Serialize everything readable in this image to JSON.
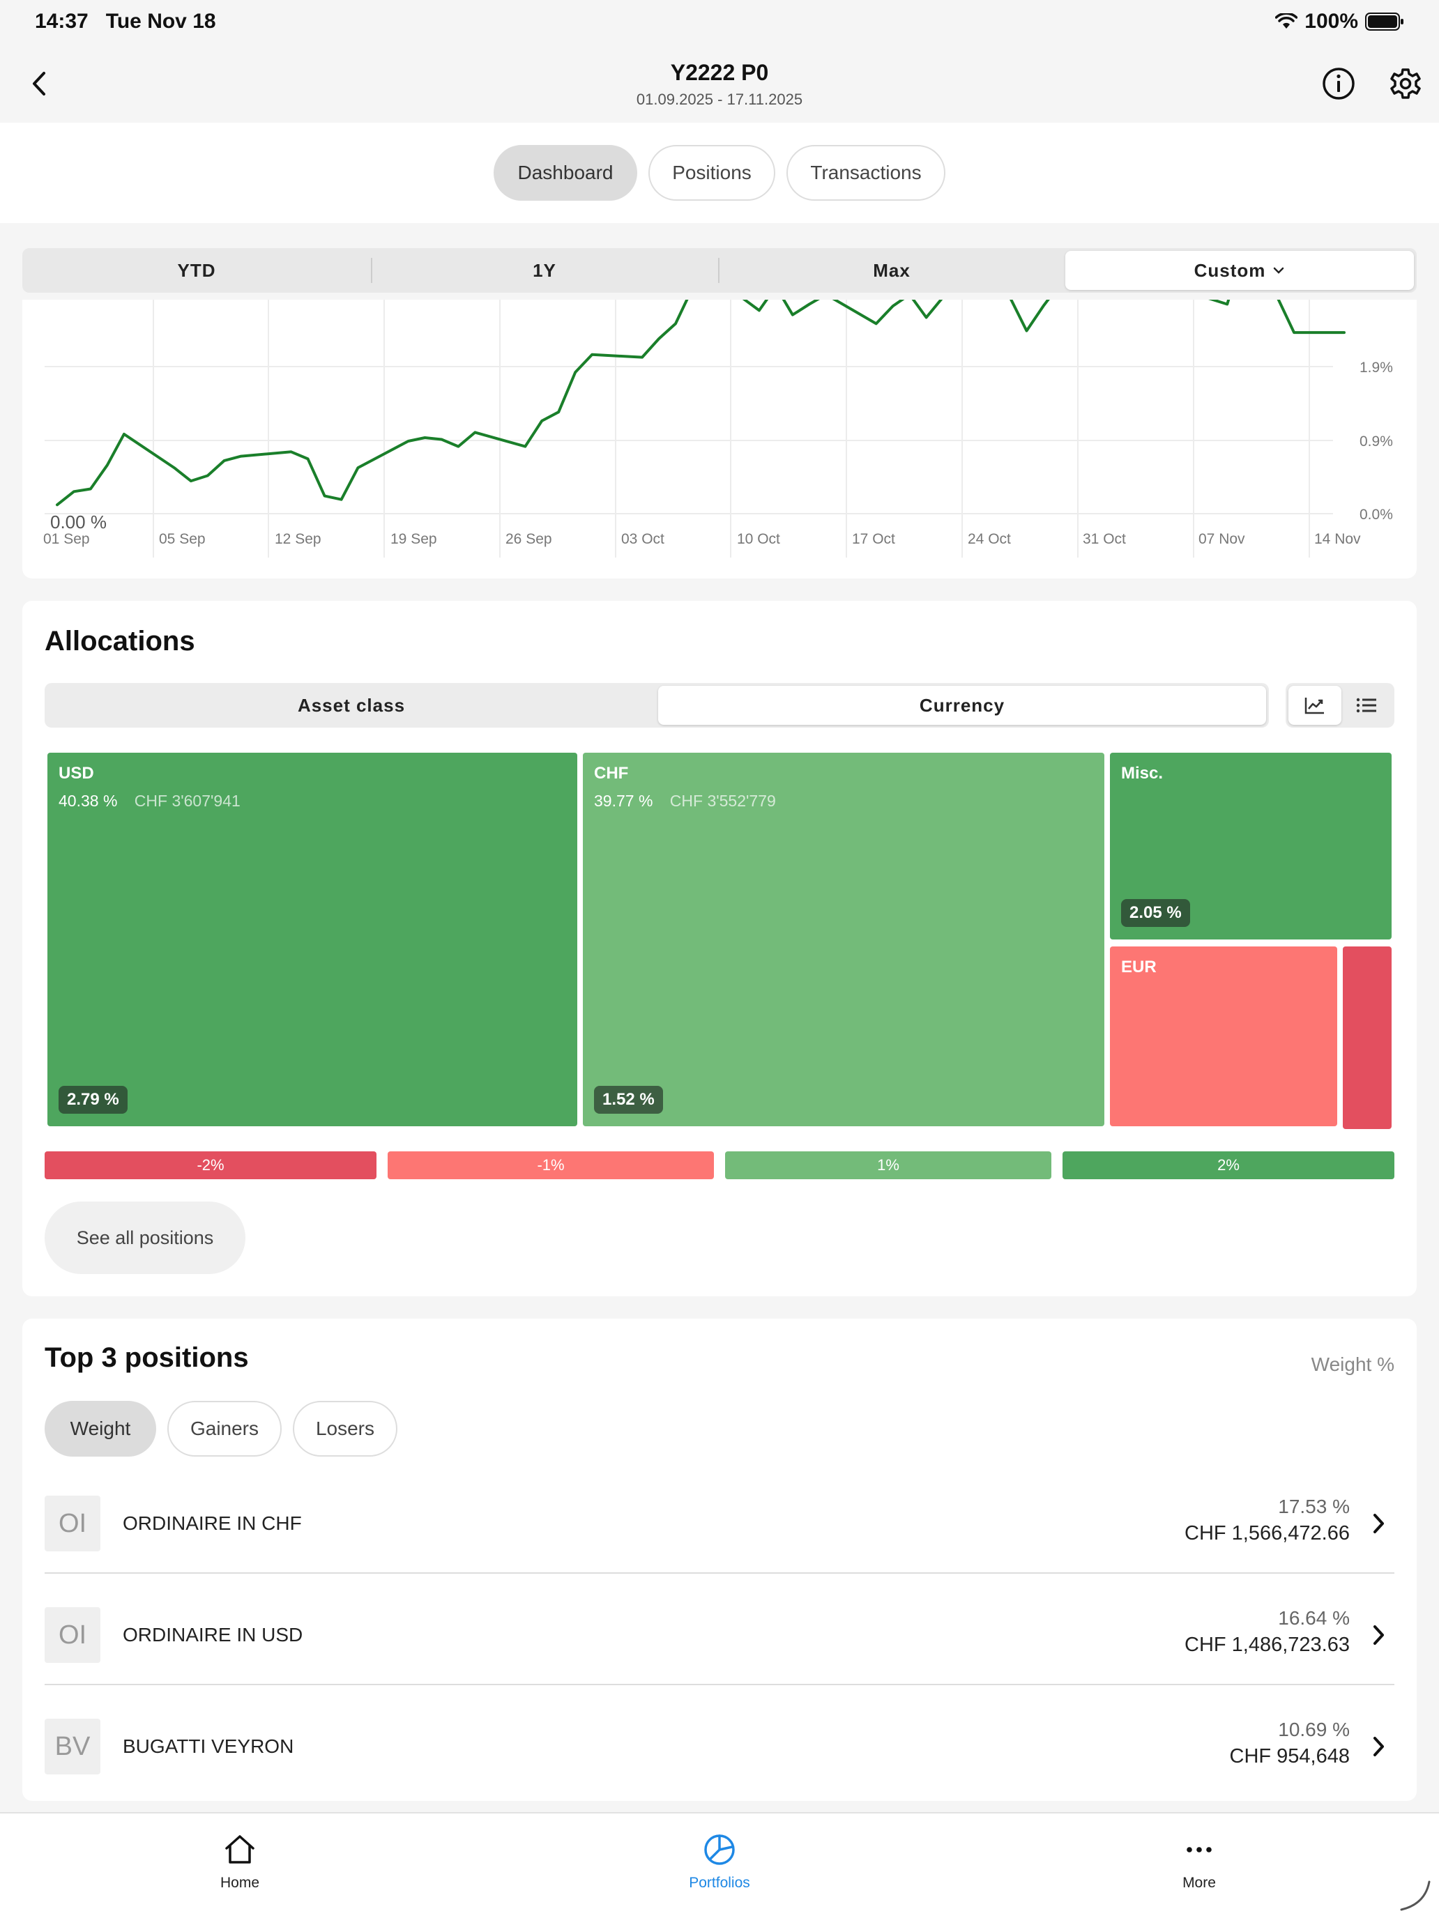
{
  "status": {
    "time": "14:37",
    "date": "Tue Nov 18",
    "battery": "100%"
  },
  "header": {
    "title": "Y2222 P0",
    "subtitle": "01.09.2025 - 17.11.2025"
  },
  "top_tabs": [
    {
      "label": "Dashboard",
      "active": true
    },
    {
      "label": "Positions",
      "active": false
    },
    {
      "label": "Transactions",
      "active": false
    }
  ],
  "period": {
    "options": [
      "YTD",
      "1Y",
      "Max",
      "Custom"
    ],
    "selected": "Custom"
  },
  "chart_data": {
    "type": "line",
    "x_tick_labels": [
      "01 Sep",
      "05 Sep",
      "12 Sep",
      "19 Sep",
      "26 Sep",
      "03 Oct",
      "10 Oct",
      "17 Oct",
      "24 Oct",
      "31 Oct",
      "07 Nov",
      "14 Nov"
    ],
    "y_tick_labels": [
      "1.9%",
      "0.9%",
      "0.0%"
    ],
    "start_label": "0.00 %",
    "ylim": [
      -0.1,
      2.7
    ],
    "line_color": "#1a7f2a",
    "x": [
      "2025-09-01",
      "2025-09-02",
      "2025-09-03",
      "2025-09-04",
      "2025-09-05",
      "2025-09-08",
      "2025-09-09",
      "2025-09-10",
      "2025-09-11",
      "2025-09-12",
      "2025-09-15",
      "2025-09-16",
      "2025-09-17",
      "2025-09-18",
      "2025-09-19",
      "2025-09-22",
      "2025-09-23",
      "2025-09-24",
      "2025-09-25",
      "2025-09-26",
      "2025-09-29",
      "2025-09-30",
      "2025-10-01",
      "2025-10-02",
      "2025-10-03",
      "2025-10-06",
      "2025-10-07",
      "2025-10-08",
      "2025-10-09",
      "2025-10-10",
      "2025-10-13",
      "2025-10-14",
      "2025-10-15",
      "2025-10-16",
      "2025-10-17",
      "2025-10-20",
      "2025-10-21",
      "2025-10-22",
      "2025-10-23",
      "2025-10-24",
      "2025-10-27",
      "2025-10-28",
      "2025-10-29",
      "2025-10-30",
      "2025-10-31",
      "2025-11-03",
      "2025-11-04",
      "2025-11-05",
      "2025-11-06",
      "2025-11-07",
      "2025-11-10",
      "2025-11-11",
      "2025-11-12",
      "2025-11-13",
      "2025-11-14",
      "2025-11-17"
    ],
    "values": [
      0.0,
      0.15,
      0.18,
      0.45,
      0.8,
      0.42,
      0.27,
      0.33,
      0.5,
      0.55,
      0.6,
      0.52,
      0.1,
      0.06,
      0.42,
      0.72,
      0.76,
      0.74,
      0.66,
      0.82,
      0.66,
      0.95,
      1.05,
      1.5,
      1.7,
      1.67,
      1.88,
      2.05,
      2.45,
      2.62,
      2.2,
      2.47,
      2.15,
      2.27,
      2.38,
      2.05,
      2.25,
      2.38,
      2.12,
      2.35,
      2.38,
      2.35,
      1.97,
      2.25,
      2.5,
      2.5,
      2.8,
      2.78,
      2.8,
      2.45,
      2.27,
      2.9,
      2.85,
      2.35,
      1.95,
      1.95
    ]
  },
  "allocations": {
    "title": "Allocations",
    "segments": [
      {
        "label": "Asset class",
        "active": false
      },
      {
        "label": "Currency",
        "active": true
      }
    ],
    "view_toggle": {
      "chart_icon": "line-chart-icon",
      "list_icon": "list-icon",
      "active": "chart"
    },
    "tiles": [
      {
        "label": "USD",
        "weight": "40.38 %",
        "amount": "CHF 3'607'941",
        "performance": "2.79 %",
        "color": "#4ea65e"
      },
      {
        "label": "CHF",
        "weight": "39.77 %",
        "amount": "CHF 3'552'779",
        "performance": "1.52 %",
        "color": "#73bb79"
      },
      {
        "label": "Misc.",
        "weight": "",
        "amount": "",
        "performance": "2.05 %",
        "color": "#4ea65e"
      },
      {
        "label": "EUR",
        "weight": "",
        "amount": "",
        "performance": "",
        "color": "#fd7673"
      },
      {
        "label": "",
        "weight": "",
        "amount": "",
        "performance": "",
        "color": "#e34f5f"
      }
    ],
    "legend": [
      {
        "label": "-2%",
        "color": "#e34f5f"
      },
      {
        "label": "-1%",
        "color": "#fd7673"
      },
      {
        "label": "1%",
        "color": "#73bb79"
      },
      {
        "label": "2%",
        "color": "#4ea65e"
      }
    ],
    "see_all_label": "See all positions"
  },
  "top_positions": {
    "title": "Top 3 positions",
    "sort_label": "Weight %",
    "filters": [
      {
        "label": "Weight",
        "active": true
      },
      {
        "label": "Gainers",
        "active": false
      },
      {
        "label": "Losers",
        "active": false
      }
    ],
    "rows": [
      {
        "abbr": "OI",
        "name": "ORDINAIRE IN CHF",
        "weight": "17.53 %",
        "value": "CHF 1,566,472.66"
      },
      {
        "abbr": "OI",
        "name": "ORDINAIRE IN USD",
        "weight": "16.64 %",
        "value": "CHF 1,486,723.63"
      },
      {
        "abbr": "BV",
        "name": "BUGATTI VEYRON",
        "weight": "10.69 %",
        "value": "CHF 954,648"
      }
    ]
  },
  "bottom_nav": [
    {
      "label": "Home",
      "icon": "home-icon",
      "active": false
    },
    {
      "label": "Portfolios",
      "icon": "portfolios-icon",
      "active": true
    },
    {
      "label": "More",
      "icon": "more-icon",
      "active": false
    }
  ],
  "colors": {
    "accent": "#1e88e5",
    "positive": "#4ea65e",
    "negative": "#e34f5f"
  }
}
